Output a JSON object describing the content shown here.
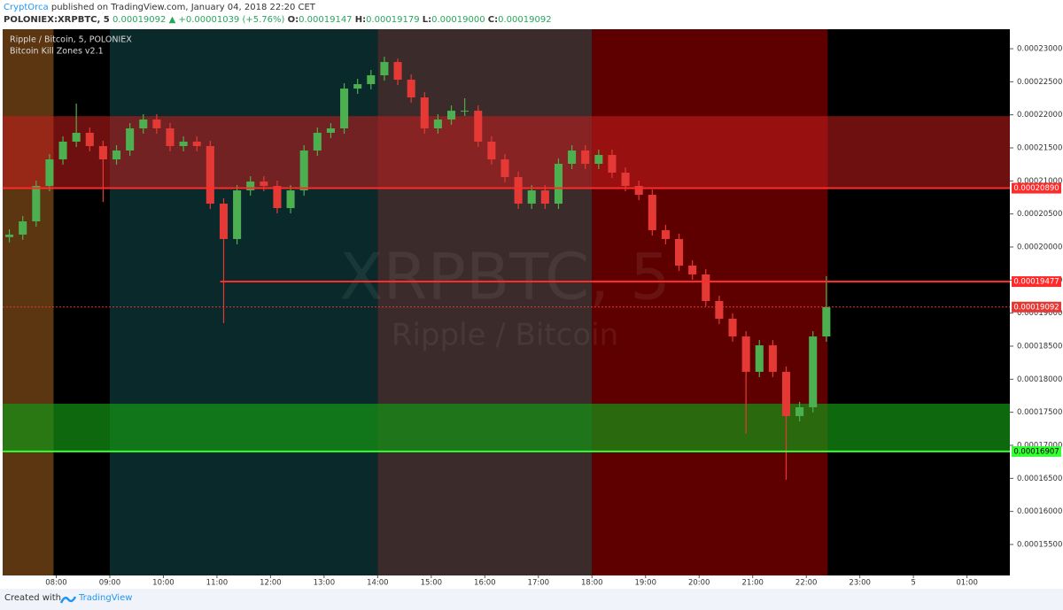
{
  "header": {
    "author": "CryptOrca",
    "published": "published on TradingView.com, January 04, 2018 22:20 CET"
  },
  "quote": {
    "symbol": "POLONIEX:XRPBTC, 5",
    "last": "0.00019092",
    "change": "+0.00001039 (+5.76%)",
    "open_label": "O:",
    "open": "0.00019147",
    "high_label": "H:",
    "high": "0.00019179",
    "low_label": "L:",
    "low": "0.00019000",
    "close_label": "C:",
    "close": "0.00019092"
  },
  "chart_data": {
    "type": "candlestick",
    "title": "Ripple / Bitcoin, 5, POLONIEX",
    "subtitle": "Bitcoin Kill Zones v2.1",
    "watermark": "XRPBTC, 5",
    "watermark_subtitle": "Ripple / Bitcoin",
    "background": "#000000",
    "up_color": "#4caf50",
    "down_color": "#e53935",
    "xlim": [
      7.0,
      25.8
    ],
    "ylim": [
      0.00015031,
      0.00023295
    ],
    "xticks": [
      {
        "value": 8,
        "label": "08:00"
      },
      {
        "value": 9,
        "label": "09:00"
      },
      {
        "value": 10,
        "label": "10:00"
      },
      {
        "value": 11,
        "label": "11:00"
      },
      {
        "value": 12,
        "label": "12:00"
      },
      {
        "value": 13,
        "label": "13:00"
      },
      {
        "value": 14,
        "label": "14:00"
      },
      {
        "value": 15,
        "label": "15:00"
      },
      {
        "value": 16,
        "label": "16:00"
      },
      {
        "value": 17,
        "label": "17:00"
      },
      {
        "value": 18,
        "label": "18:00"
      },
      {
        "value": 19,
        "label": "19:00"
      },
      {
        "value": 20,
        "label": "20:00"
      },
      {
        "value": 21,
        "label": "21:00"
      },
      {
        "value": 22,
        "label": "22:00"
      },
      {
        "value": 23,
        "label": "23:00"
      },
      {
        "value": 24,
        "label": "5"
      },
      {
        "value": 25,
        "label": "01:00"
      }
    ],
    "yticks": [
      {
        "value": 0.000155,
        "label": "0.00015500"
      },
      {
        "value": 0.00016,
        "label": "0.00016000"
      },
      {
        "value": 0.000165,
        "label": "0.00016500"
      },
      {
        "value": 0.00017,
        "label": "0.00017000"
      },
      {
        "value": 0.000175,
        "label": "0.00017500"
      },
      {
        "value": 0.00018,
        "label": "0.00018000"
      },
      {
        "value": 0.000185,
        "label": "0.00018500"
      },
      {
        "value": 0.00019,
        "label": "0.00019000"
      },
      {
        "value": 0.000195,
        "label": "0.00019500"
      },
      {
        "value": 0.0002,
        "label": "0.00020000"
      },
      {
        "value": 0.000205,
        "label": "0.00020500"
      },
      {
        "value": 0.00021,
        "label": "0.00021000"
      },
      {
        "value": 0.000215,
        "label": "0.00021500"
      },
      {
        "value": 0.00022,
        "label": "0.00022000"
      },
      {
        "value": 0.000225,
        "label": "0.00022500"
      },
      {
        "value": 0.00023,
        "label": "0.00023000"
      }
    ],
    "sessions": [
      {
        "start": 7.0,
        "end": 7.95,
        "color": "#5c3511"
      },
      {
        "start": 7.95,
        "end": 9,
        "color": "#000000"
      },
      {
        "start": 9,
        "end": 14,
        "color": "#0a292b"
      },
      {
        "start": 14,
        "end": 18,
        "color": "#3b2b2a"
      },
      {
        "start": 18,
        "end": 22.4,
        "color": "#5e0000"
      }
    ],
    "zones": [
      {
        "top": 0.0002198,
        "bottom": 0.0002089,
        "color": "rgba(200,30,30,0.55)"
      },
      {
        "top": 0.00017629,
        "bottom": 0.00016907,
        "color": "rgba(20,150,20,0.7)"
      }
    ],
    "levels": [
      {
        "value": 0.0002089,
        "label": "0.00020890",
        "color": "#ff2a2a",
        "start": 7.0,
        "dashed": false
      },
      {
        "value": 0.00019477,
        "label": "0.00019477",
        "color": "#ff2a2a",
        "start": 11.06,
        "dashed": false
      },
      {
        "value": 0.00019092,
        "label": "0.00019092",
        "color": "#e53935",
        "start": 7.0,
        "dashed": true
      },
      {
        "value": 0.00016907,
        "label": "0.00016907",
        "color": "#33ff33",
        "start": 7.0,
        "dashed": false
      }
    ],
    "x": [
      7.125,
      7.375,
      7.625,
      7.875,
      8.125,
      8.375,
      8.625,
      8.875,
      9.125,
      9.375,
      9.625,
      9.875,
      10.125,
      10.375,
      10.625,
      10.875,
      11.125,
      11.375,
      11.625,
      11.875,
      12.125,
      12.375,
      12.625,
      12.875,
      13.125,
      13.375,
      13.625,
      13.875,
      14.125,
      14.375,
      14.625,
      14.875,
      15.125,
      15.375,
      15.625,
      15.875,
      16.125,
      16.375,
      16.625,
      16.875,
      17.125,
      17.375,
      17.625,
      17.875,
      18.125,
      18.375,
      18.625,
      18.875,
      19.125,
      19.375,
      19.625,
      19.875,
      20.125,
      20.375,
      20.625,
      20.875,
      21.125,
      21.375,
      21.625,
      21.875,
      22.125,
      22.375
    ],
    "open": [
      0.0002015,
      0.00020188,
      0.00020388,
      0.00020924,
      0.00021326,
      0.00021594,
      0.00021728,
      0.00021527,
      0.00021326,
      0.0002146,
      0.00021795,
      0.00021929,
      0.00021795,
      0.00021527,
      0.00021594,
      0.00021527,
      0.00020656,
      0.00020121,
      0.00020857,
      0.00020991,
      0.00020924,
      0.00020589,
      0.00020857,
      0.0002146,
      0.00021728,
      0.00021795,
      0.00022397,
      0.00022464,
      0.00022598,
      0.00022799,
      0.00022531,
      0.00022263,
      0.00021795,
      0.00021929,
      0.00022062,
      0.00022062,
      0.00021594,
      0.00021326,
      0.00021058,
      0.00020656,
      0.00020857,
      0.00020656,
      0.00021259,
      0.0002146,
      0.00021259,
      0.00021393,
      0.00021125,
      0.00020924,
      0.0002079,
      0.00020254,
      0.00020121,
      0.00019719,
      0.00019585,
      0.00019183,
      0.00018915,
      0.00018647,
      0.00018112,
      0.00018513,
      0.00018112,
      0.00017442,
      0.00017576,
      0.00018647
    ],
    "high": [
      0.00020268,
      0.00020468,
      0.00021004,
      0.00021406,
      0.00021674,
      0.0002217,
      0.00021808,
      0.00021607,
      0.0002154,
      0.00021875,
      0.00022009,
      0.00022009,
      0.00021875,
      0.00021674,
      0.00021674,
      0.00021607,
      0.00020736,
      0.00020937,
      0.00021071,
      0.00021071,
      0.00021004,
      0.00020937,
      0.0002154,
      0.00021808,
      0.00021875,
      0.00022477,
      0.00022544,
      0.00022678,
      0.0002288,
      0.0002285,
      0.00022611,
      0.00022343,
      0.00022009,
      0.00022142,
      0.0002225,
      0.00022142,
      0.00021674,
      0.00021406,
      0.00021138,
      0.00020937,
      0.00020937,
      0.00021339,
      0.0002154,
      0.0002154,
      0.00021473,
      0.00021473,
      0.00021205,
      0.00021004,
      0.0002087,
      0.00020334,
      0.00020201,
      0.00019799,
      0.00019665,
      0.00019263,
      0.00018995,
      0.00018727,
      0.00018593,
      0.00018593,
      0.00018192,
      0.00017656,
      0.00018727,
      0.0001956
    ],
    "low": [
      0.0002007,
      0.00020108,
      0.00020308,
      0.00020844,
      0.00021246,
      0.00021514,
      0.00021447,
      0.0002068,
      0.00021246,
      0.0002138,
      0.00021715,
      0.00021715,
      0.00021447,
      0.00021447,
      0.00021447,
      0.00020576,
      0.00018848,
      0.00020041,
      0.00020777,
      0.00020844,
      0.00020509,
      0.00020509,
      0.00020777,
      0.0002138,
      0.00021648,
      0.00021715,
      0.00022317,
      0.00022384,
      0.00022518,
      0.00022451,
      0.00022183,
      0.00021715,
      0.00021715,
      0.00021849,
      0.00021982,
      0.00021514,
      0.00021246,
      0.00020978,
      0.00020576,
      0.00020576,
      0.00020576,
      0.00020576,
      0.00021179,
      0.00021179,
      0.00021179,
      0.00021045,
      0.00020844,
      0.0002071,
      0.00020174,
      0.00020041,
      0.00019639,
      0.00019505,
      0.00019103,
      0.00018835,
      0.00018567,
      0.00017174,
      0.00018032,
      0.00018032,
      0.00016478,
      0.00017362,
      0.00017496,
      0.00018567
    ],
    "close": [
      0.00020188,
      0.00020388,
      0.00020924,
      0.00021326,
      0.00021594,
      0.00021728,
      0.00021527,
      0.00021326,
      0.0002146,
      0.00021795,
      0.00021929,
      0.00021795,
      0.00021527,
      0.00021594,
      0.00021527,
      0.00020656,
      0.00020121,
      0.00020857,
      0.00020991,
      0.00020924,
      0.00020589,
      0.00020857,
      0.0002146,
      0.00021728,
      0.00021795,
      0.00022397,
      0.00022464,
      0.00022598,
      0.00022799,
      0.00022531,
      0.00022263,
      0.00021795,
      0.00021929,
      0.00022062,
      0.00022062,
      0.00021594,
      0.00021326,
      0.00021058,
      0.00020656,
      0.00020857,
      0.00020656,
      0.00021259,
      0.0002146,
      0.00021259,
      0.00021393,
      0.00021125,
      0.00020924,
      0.0002079,
      0.00020254,
      0.00020121,
      0.00019719,
      0.00019585,
      0.00019183,
      0.00018915,
      0.00018647,
      0.00018112,
      0.00018513,
      0.00018112,
      0.00017442,
      0.00017576,
      0.00018647,
      0.00019092
    ]
  },
  "footer": {
    "created": "Created with",
    "brand": "TradingView"
  }
}
